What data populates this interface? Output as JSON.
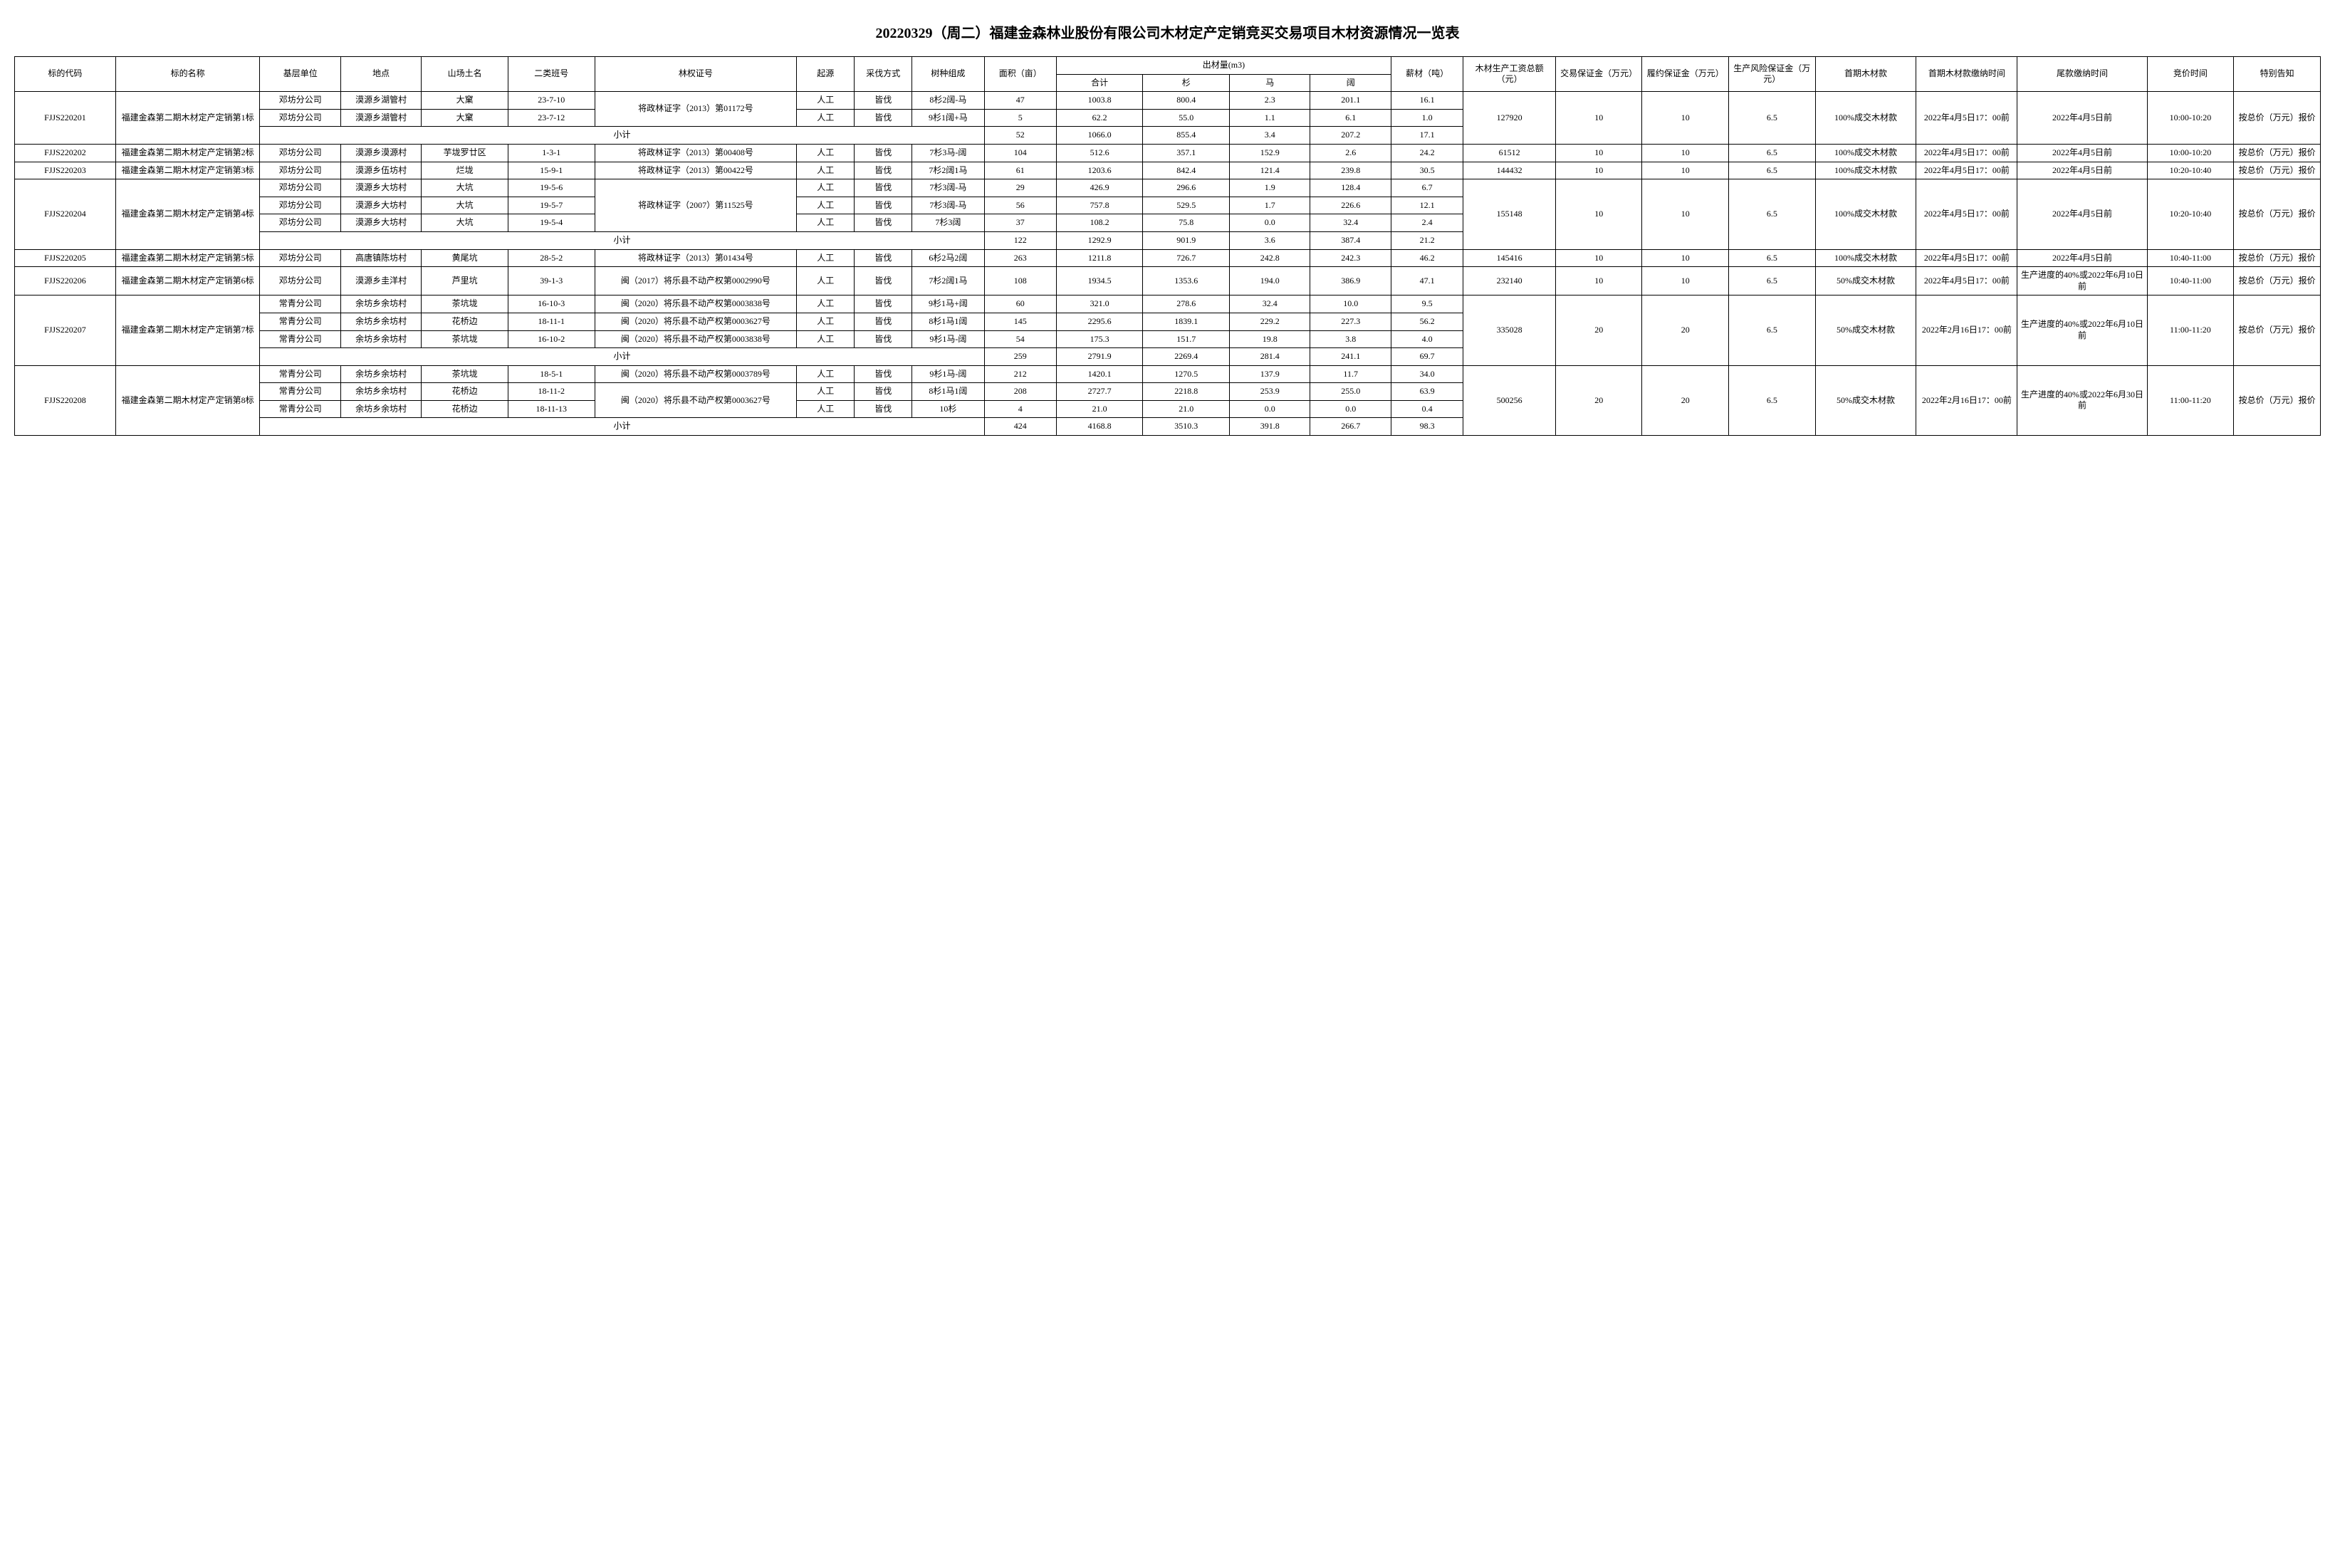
{
  "title": "20220329（周二）福建金森林业股份有限公司木材定产定销竞买交易项目木材资源情况一览表",
  "headers": {
    "code": "标的代码",
    "name": "标的名称",
    "unit": "基层单位",
    "place": "地点",
    "forest": "山场土名",
    "class": "二类班号",
    "cert": "林权证号",
    "origin": "起源",
    "method": "采伐方式",
    "species": "树种组成",
    "area": "面积（亩）",
    "yield": "出材量(m3)",
    "yield_total": "合计",
    "yield_sha": "杉",
    "yield_ma": "马",
    "yield_kuo": "阔",
    "fuel": "薪材（吨）",
    "wage": "木材生产工资总额（元）",
    "jdep": "交易保证金（万元）",
    "ldep": "履约保证金（万元）",
    "risk": "生产风险保证金（万元）",
    "first": "首期木材款",
    "ftime": "首期木材款缴纳时间",
    "ltime": "尾款缴纳时间",
    "bid": "竞价时间",
    "note": "特别告知",
    "subtotal": "小计"
  },
  "groups": [
    {
      "code": "FJJS220201",
      "name": "福建金森第二期木材定产定销第1标",
      "rows": [
        {
          "unit": "邓坊分公司",
          "place": "漠源乡湖管村",
          "forest": "大窠",
          "class": "23-7-10",
          "cert": "将政林证字（2013）第01172号",
          "origin": "人工",
          "method": "皆伐",
          "species": "8杉2阔-马",
          "area": "47",
          "total": "1003.8",
          "sha": "800.4",
          "ma": "2.3",
          "kuo": "201.1",
          "fuel": "16.1"
        },
        {
          "unit": "邓坊分公司",
          "place": "漠源乡湖管村",
          "forest": "大窠",
          "class": "23-7-12",
          "cert": "",
          "origin": "人工",
          "method": "皆伐",
          "species": "9杉1阔+马",
          "area": "5",
          "total": "62.2",
          "sha": "55.0",
          "ma": "1.1",
          "kuo": "6.1",
          "fuel": "1.0"
        }
      ],
      "cert_rowspan": 2,
      "subtotal": {
        "area": "52",
        "total": "1066.0",
        "sha": "855.4",
        "ma": "3.4",
        "kuo": "207.2",
        "fuel": "17.1"
      },
      "wage": "127920",
      "jdep": "10",
      "ldep": "10",
      "risk": "6.5",
      "first": "100%成交木材款",
      "ftime": "2022年4月5日17：00前",
      "ltime": "2022年4月5日前",
      "bid": "10:00-10:20",
      "note": "按总价（万元）报价"
    },
    {
      "code": "FJJS220202",
      "name": "福建金森第二期木材定产定销第2标",
      "rows": [
        {
          "unit": "邓坊分公司",
          "place": "漠源乡漠源村",
          "forest": "芋垅罗廿区",
          "class": "1-3-1",
          "cert": "将政林证字（2013）第00408号",
          "origin": "人工",
          "method": "皆伐",
          "species": "7杉3马-阔",
          "area": "104",
          "total": "512.6",
          "sha": "357.1",
          "ma": "152.9",
          "kuo": "2.6",
          "fuel": "24.2"
        }
      ],
      "wage": "61512",
      "jdep": "10",
      "ldep": "10",
      "risk": "6.5",
      "first": "100%成交木材款",
      "ftime": "2022年4月5日17：00前",
      "ltime": "2022年4月5日前",
      "bid": "10:00-10:20",
      "note": "按总价（万元）报价"
    },
    {
      "code": "FJJS220203",
      "name": "福建金森第二期木材定产定销第3标",
      "rows": [
        {
          "unit": "邓坊分公司",
          "place": "漠源乡伍坊村",
          "forest": "烂垅",
          "class": "15-9-1",
          "cert": "将政林证字（2013）第00422号",
          "origin": "人工",
          "method": "皆伐",
          "species": "7杉2阔1马",
          "area": "61",
          "total": "1203.6",
          "sha": "842.4",
          "ma": "121.4",
          "kuo": "239.8",
          "fuel": "30.5"
        }
      ],
      "wage": "144432",
      "jdep": "10",
      "ldep": "10",
      "risk": "6.5",
      "first": "100%成交木材款",
      "ftime": "2022年4月5日17：00前",
      "ltime": "2022年4月5日前",
      "bid": "10:20-10:40",
      "note": "按总价（万元）报价"
    },
    {
      "code": "FJJS220204",
      "name": "福建金森第二期木材定产定销第4标",
      "rows": [
        {
          "unit": "邓坊分公司",
          "place": "漠源乡大坊村",
          "forest": "大坑",
          "class": "19-5-6",
          "cert": "将政林证字（2007）第11525号",
          "origin": "人工",
          "method": "皆伐",
          "species": "7杉3阔-马",
          "area": "29",
          "total": "426.9",
          "sha": "296.6",
          "ma": "1.9",
          "kuo": "128.4",
          "fuel": "6.7"
        },
        {
          "unit": "邓坊分公司",
          "place": "漠源乡大坊村",
          "forest": "大坑",
          "class": "19-5-7",
          "cert": "",
          "origin": "人工",
          "method": "皆伐",
          "species": "7杉3阔-马",
          "area": "56",
          "total": "757.8",
          "sha": "529.5",
          "ma": "1.7",
          "kuo": "226.6",
          "fuel": "12.1"
        },
        {
          "unit": "邓坊分公司",
          "place": "漠源乡大坊村",
          "forest": "大坑",
          "class": "19-5-4",
          "cert": "",
          "origin": "人工",
          "method": "皆伐",
          "species": "7杉3阔",
          "area": "37",
          "total": "108.2",
          "sha": "75.8",
          "ma": "0.0",
          "kuo": "32.4",
          "fuel": "2.4"
        }
      ],
      "cert_rowspan": 3,
      "subtotal": {
        "area": "122",
        "total": "1292.9",
        "sha": "901.9",
        "ma": "3.6",
        "kuo": "387.4",
        "fuel": "21.2"
      },
      "wage": "155148",
      "jdep": "10",
      "ldep": "10",
      "risk": "6.5",
      "first": "100%成交木材款",
      "ftime": "2022年4月5日17：00前",
      "ltime": "2022年4月5日前",
      "bid": "10:20-10:40",
      "note": "按总价（万元）报价"
    },
    {
      "code": "FJJS220205",
      "name": "福建金森第二期木材定产定销第5标",
      "rows": [
        {
          "unit": "邓坊分公司",
          "place": "高唐镇陈坊村",
          "forest": "黄尾坑",
          "class": "28-5-2",
          "cert": "将政林证字（2013）第01434号",
          "origin": "人工",
          "method": "皆伐",
          "species": "6杉2马2阔",
          "area": "263",
          "total": "1211.8",
          "sha": "726.7",
          "ma": "242.8",
          "kuo": "242.3",
          "fuel": "46.2"
        }
      ],
      "wage": "145416",
      "jdep": "10",
      "ldep": "10",
      "risk": "6.5",
      "first": "100%成交木材款",
      "ftime": "2022年4月5日17：00前",
      "ltime": "2022年4月5日前",
      "bid": "10:40-11:00",
      "note": "按总价（万元）报价"
    },
    {
      "code": "FJJS220206",
      "name": "福建金森第二期木材定产定销第6标",
      "rows": [
        {
          "unit": "邓坊分公司",
          "place": "漠源乡圭洋村",
          "forest": "芦里坑",
          "class": "39-1-3",
          "cert": "闽（2017）将乐县不动产权第0002990号",
          "origin": "人工",
          "method": "皆伐",
          "species": "7杉2阔1马",
          "area": "108",
          "total": "1934.5",
          "sha": "1353.6",
          "ma": "194.0",
          "kuo": "386.9",
          "fuel": "47.1"
        }
      ],
      "wage": "232140",
      "jdep": "10",
      "ldep": "10",
      "risk": "6.5",
      "first": "50%成交木材款",
      "ftime": "2022年4月5日17：00前",
      "ltime": "生产进度的40%或2022年6月10日前",
      "bid": "10:40-11:00",
      "note": "按总价（万元）报价"
    },
    {
      "code": "FJJS220207",
      "name": "福建金森第二期木材定产定销第7标",
      "rows": [
        {
          "unit": "常青分公司",
          "place": "余坊乡余坊村",
          "forest": "茶坑垅",
          "class": "16-10-3",
          "cert": "闽（2020）将乐县不动产权第0003838号",
          "origin": "人工",
          "method": "皆伐",
          "species": "9杉1马+阔",
          "area": "60",
          "total": "321.0",
          "sha": "278.6",
          "ma": "32.4",
          "kuo": "10.0",
          "fuel": "9.5"
        },
        {
          "unit": "常青分公司",
          "place": "余坊乡余坊村",
          "forest": "花桥边",
          "class": "18-11-1",
          "cert": "闽（2020）将乐县不动产权第0003627号",
          "origin": "人工",
          "method": "皆伐",
          "species": "8杉1马1阔",
          "area": "145",
          "total": "2295.6",
          "sha": "1839.1",
          "ma": "229.2",
          "kuo": "227.3",
          "fuel": "56.2"
        },
        {
          "unit": "常青分公司",
          "place": "余坊乡余坊村",
          "forest": "茶坑垅",
          "class": "16-10-2",
          "cert": "闽（2020）将乐县不动产权第0003838号",
          "origin": "人工",
          "method": "皆伐",
          "species": "9杉1马-阔",
          "area": "54",
          "total": "175.3",
          "sha": "151.7",
          "ma": "19.8",
          "kuo": "3.8",
          "fuel": "4.0"
        }
      ],
      "subtotal": {
        "area": "259",
        "total": "2791.9",
        "sha": "2269.4",
        "ma": "281.4",
        "kuo": "241.1",
        "fuel": "69.7"
      },
      "wage": "335028",
      "jdep": "20",
      "ldep": "20",
      "risk": "6.5",
      "first": "50%成交木材款",
      "ftime": "2022年2月16日17：00前",
      "ltime": "生产进度的40%或2022年6月10日前",
      "bid": "11:00-11:20",
      "note": "按总价（万元）报价"
    },
    {
      "code": "FJJS220208",
      "name": "福建金森第二期木材定产定销第8标",
      "rows": [
        {
          "unit": "常青分公司",
          "place": "余坊乡余坊村",
          "forest": "茶坑垅",
          "class": "18-5-1",
          "cert": "闽（2020）将乐县不动产权第0003789号",
          "origin": "人工",
          "method": "皆伐",
          "species": "9杉1马-阔",
          "area": "212",
          "total": "1420.1",
          "sha": "1270.5",
          "ma": "137.9",
          "kuo": "11.7",
          "fuel": "34.0"
        },
        {
          "unit": "常青分公司",
          "place": "余坊乡余坊村",
          "forest": "花桥边",
          "class": "18-11-2",
          "cert": "闽（2020）将乐县不动产权第0003627号",
          "origin": "人工",
          "method": "皆伐",
          "species": "8杉1马1阔",
          "area": "208",
          "total": "2727.7",
          "sha": "2218.8",
          "ma": "253.9",
          "kuo": "255.0",
          "fuel": "63.9"
        },
        {
          "unit": "常青分公司",
          "place": "余坊乡余坊村",
          "forest": "花桥边",
          "class": "18-11-13",
          "cert": "",
          "origin": "人工",
          "method": "皆伐",
          "species": "10杉",
          "area": "4",
          "total": "21.0",
          "sha": "21.0",
          "ma": "0.0",
          "kuo": "0.0",
          "fuel": "0.4"
        }
      ],
      "cert_rowspans": [
        1,
        2
      ],
      "subtotal": {
        "area": "424",
        "total": "4168.8",
        "sha": "3510.3",
        "ma": "391.8",
        "kuo": "266.7",
        "fuel": "98.3"
      },
      "wage": "500256",
      "jdep": "20",
      "ldep": "20",
      "risk": "6.5",
      "first": "50%成交木材款",
      "ftime": "2022年2月16日17：00前",
      "ltime": "生产进度的40%或2022年6月30日前",
      "bid": "11:00-11:20",
      "note": "按总价（万元）报价"
    }
  ]
}
